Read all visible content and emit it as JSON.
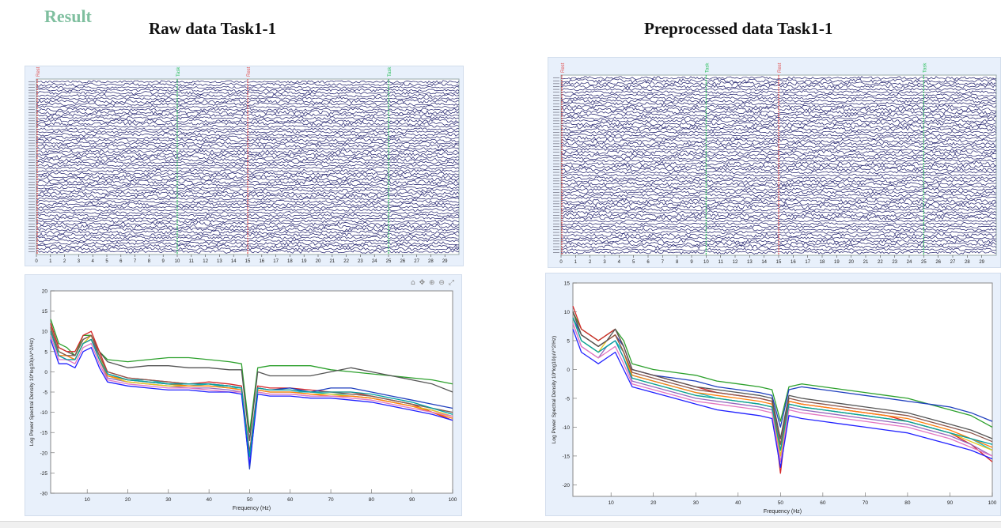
{
  "page": {
    "result_label": "Result"
  },
  "panels": {
    "raw_title": "Raw data Task1-1",
    "pre_title": "Preprocessed data Task1-1"
  },
  "chart_data": [
    {
      "type": "line",
      "kind": "eeg-scroll",
      "title": "Raw data Task1-1",
      "x_ticks": [
        "0",
        "1",
        "2",
        "3",
        "4",
        "5",
        "6",
        "7",
        "8",
        "9",
        "10",
        "11",
        "12",
        "13",
        "14",
        "15",
        "16",
        "17",
        "18",
        "19",
        "20",
        "21",
        "22",
        "23",
        "24",
        "25",
        "26",
        "27",
        "28",
        "29"
      ],
      "xlim": [
        0,
        30
      ],
      "event_markers": [
        {
          "label": "Rest",
          "x": 0,
          "color": "#e05050"
        },
        {
          "label": "Task",
          "x": 10,
          "color": "#30c060"
        },
        {
          "label": "Rest",
          "x": 15,
          "color": "#e05050"
        },
        {
          "label": "Task",
          "x": 25,
          "color": "#30c060"
        }
      ],
      "trace_color": "#1c1c6a",
      "channel_count": 62
    },
    {
      "type": "line",
      "kind": "eeg-scroll",
      "title": "Preprocessed data Task1-1",
      "x_ticks": [
        "0",
        "1",
        "2",
        "3",
        "4",
        "5",
        "6",
        "7",
        "8",
        "9",
        "10",
        "11",
        "12",
        "13",
        "14",
        "15",
        "16",
        "17",
        "18",
        "19",
        "20",
        "21",
        "22",
        "23",
        "24",
        "25",
        "26",
        "27",
        "28",
        "29"
      ],
      "xlim": [
        0,
        30
      ],
      "event_markers": [
        {
          "label": "Rest",
          "x": 0,
          "color": "#e05050"
        },
        {
          "label": "Task",
          "x": 10,
          "color": "#30c060"
        },
        {
          "label": "Rest",
          "x": 15,
          "color": "#e05050"
        },
        {
          "label": "Task",
          "x": 25,
          "color": "#30c060"
        }
      ],
      "trace_color": "#1c1c6a",
      "channel_count": 62
    },
    {
      "type": "line",
      "kind": "psd",
      "xlabel": "Frequency (Hz)",
      "ylabel": "Log Power Spectral Density 10*log10(uV^2/Hz)",
      "xlim": [
        1,
        100
      ],
      "ylim": [
        -30,
        20
      ],
      "x_ticks": [
        10,
        20,
        30,
        40,
        50,
        60,
        70,
        80,
        90,
        100
      ],
      "y_ticks": [
        20,
        15,
        10,
        5,
        0,
        -5,
        -10,
        -15,
        -20,
        -25,
        -30
      ],
      "x": [
        1,
        3,
        5,
        7,
        9,
        11,
        13,
        15,
        20,
        25,
        30,
        35,
        40,
        45,
        48,
        50,
        52,
        55,
        60,
        65,
        70,
        75,
        80,
        85,
        90,
        95,
        100
      ],
      "series": [
        {
          "color": "#2ca02c",
          "values": [
            13,
            7,
            6,
            4,
            9,
            9,
            5,
            3,
            2.5,
            3,
            3.5,
            3.5,
            3,
            2.5,
            2,
            -15,
            1,
            1.5,
            1.5,
            1.5,
            0.5,
            0,
            -0.5,
            -1,
            -1.5,
            -2,
            -3
          ]
        },
        {
          "color": "#555555",
          "values": [
            12,
            6,
            5,
            4,
            8,
            9,
            5,
            2.5,
            1,
            1.5,
            1.5,
            1,
            1,
            0.5,
            0.5,
            -17,
            0,
            -1,
            -1,
            -1,
            0,
            1,
            0,
            -1,
            -2,
            -3,
            -5
          ]
        },
        {
          "color": "#d62728",
          "values": [
            12,
            6,
            5,
            5,
            9,
            10,
            5,
            0,
            -1.5,
            -2,
            -2.5,
            -3,
            -2.5,
            -3,
            -3.5,
            -20,
            -3.5,
            -4,
            -4,
            -4.5,
            -5,
            -5,
            -6,
            -7,
            -8,
            -10,
            -12
          ]
        },
        {
          "color": "#1f3fbf",
          "values": [
            10,
            5,
            4,
            3,
            7,
            8,
            4,
            -1,
            -2,
            -2.5,
            -3,
            -3,
            -3,
            -3.5,
            -4,
            -24,
            -4,
            -4.5,
            -4,
            -5,
            -4,
            -4,
            -5,
            -6,
            -7,
            -8,
            -9
          ]
        },
        {
          "color": "#17becf",
          "values": [
            11,
            5,
            4,
            4,
            8,
            9,
            4,
            -0.5,
            -2,
            -2,
            -3,
            -3.5,
            -3,
            -4,
            -4,
            -21,
            -4.5,
            -5,
            -5,
            -5,
            -5.5,
            -5.5,
            -6,
            -7,
            -8,
            -9,
            -10
          ]
        },
        {
          "color": "#9467bd",
          "values": [
            10,
            4,
            3,
            3,
            7,
            8,
            3,
            -1.5,
            -2.5,
            -3,
            -3.5,
            -4,
            -4,
            -4.5,
            -5,
            -22,
            -5,
            -5.5,
            -5.5,
            -6,
            -6,
            -6,
            -6.5,
            -7.5,
            -8.5,
            -9.5,
            -11
          ]
        },
        {
          "color": "#e6c619",
          "values": [
            11,
            5,
            4,
            3,
            7,
            9,
            4,
            -1,
            -2.5,
            -3,
            -3.5,
            -3.5,
            -3.5,
            -4,
            -4.5,
            -22,
            -4.5,
            -5,
            -5,
            -5.5,
            -5.5,
            -6,
            -6.5,
            -7.5,
            -8.5,
            -9.5,
            -11
          ]
        },
        {
          "color": "#ff7f0e",
          "values": [
            10,
            4,
            4,
            3,
            7,
            8,
            3,
            -1,
            -2,
            -2.5,
            -3,
            -3.5,
            -3.5,
            -4,
            -4.5,
            -21,
            -4.5,
            -5,
            -5,
            -5.5,
            -6,
            -6,
            -6.5,
            -7.5,
            -8.5,
            -10,
            -11.5
          ]
        },
        {
          "color": "#e377c2",
          "values": [
            9,
            3,
            3,
            2,
            6,
            7,
            2,
            -2,
            -3,
            -3.5,
            -4,
            -4,
            -4.5,
            -5,
            -5,
            -22,
            -5,
            -5.5,
            -5.5,
            -6,
            -6,
            -6.5,
            -7,
            -8,
            -9,
            -10,
            -11
          ]
        },
        {
          "color": "#2020ff",
          "values": [
            8,
            2,
            2,
            1,
            5,
            6,
            1,
            -2.5,
            -3.5,
            -4,
            -4.5,
            -4.5,
            -5,
            -5,
            -5.5,
            -23,
            -5.5,
            -6,
            -6,
            -6.5,
            -6.5,
            -7,
            -7.5,
            -8.5,
            -9.5,
            -10.5,
            -12
          ]
        },
        {
          "color": "#8c564b",
          "values": [
            11,
            5,
            4,
            4,
            8,
            9,
            4,
            0,
            -1.5,
            -2,
            -2.5,
            -3,
            -3,
            -3.5,
            -4,
            -20,
            -4,
            -4.5,
            -4.5,
            -5,
            -5,
            -5.5,
            -6,
            -7,
            -8,
            -9,
            -10
          ]
        },
        {
          "color": "#00a0a0",
          "values": [
            10,
            4,
            3,
            3,
            7,
            8,
            3,
            -0.5,
            -2,
            -2.5,
            -3,
            -3,
            -3,
            -3.5,
            -4,
            -21,
            -4,
            -4.5,
            -4.5,
            -5,
            -5,
            -5,
            -5.5,
            -6.5,
            -7.5,
            -9,
            -10.5
          ]
        }
      ]
    },
    {
      "type": "line",
      "kind": "psd",
      "xlabel": "Frequency (Hz)",
      "ylabel": "Log Power Spectral Density 10*log10(uV^2/Hz)",
      "xlim": [
        1,
        100
      ],
      "ylim": [
        -22,
        15
      ],
      "x_ticks": [
        10,
        20,
        30,
        40,
        50,
        60,
        70,
        80,
        90,
        100
      ],
      "y_ticks": [
        15,
        10,
        5,
        0,
        -5,
        -10,
        -15,
        -20
      ],
      "x": [
        1,
        3,
        5,
        7,
        9,
        11,
        13,
        15,
        20,
        25,
        30,
        35,
        40,
        45,
        48,
        50,
        52,
        55,
        60,
        65,
        70,
        75,
        80,
        85,
        90,
        95,
        100
      ],
      "series": [
        {
          "color": "#2ca02c",
          "values": [
            10,
            7,
            6,
            5,
            6,
            7,
            5,
            1,
            0,
            -0.5,
            -1,
            -2,
            -2.5,
            -3,
            -3.5,
            -9,
            -3,
            -2.5,
            -3,
            -3.5,
            -4,
            -4.5,
            -5,
            -6,
            -7,
            -8,
            -10
          ]
        },
        {
          "color": "#1f3fbf",
          "values": [
            9,
            6,
            5,
            4,
            5,
            6,
            4,
            0,
            -1,
            -1.5,
            -2,
            -3,
            -3.5,
            -4,
            -4.5,
            -10,
            -3.5,
            -3,
            -3.5,
            -4,
            -4.5,
            -5,
            -5.5,
            -6,
            -6.5,
            -7.5,
            -9
          ]
        },
        {
          "color": "#d62728",
          "values": [
            11,
            7,
            6,
            5,
            6,
            7,
            4,
            0,
            -1,
            -2,
            -3,
            -4,
            -4.5,
            -5,
            -5.5,
            -18,
            -5.5,
            -6,
            -6.5,
            -7,
            -7.5,
            -8,
            -9,
            -10,
            -11,
            -13,
            -16
          ]
        },
        {
          "color": "#17becf",
          "values": [
            9,
            5,
            4,
            3,
            4,
            5,
            3,
            -1,
            -2,
            -3,
            -4,
            -5,
            -5.5,
            -6,
            -6.5,
            -15,
            -6,
            -6.5,
            -7,
            -7.5,
            -8,
            -8.5,
            -9,
            -10,
            -11,
            -12,
            -14
          ]
        },
        {
          "color": "#9467bd",
          "values": [
            8,
            4,
            3,
            2,
            4,
            5,
            2,
            -2,
            -3,
            -4,
            -5,
            -5.5,
            -6,
            -6.5,
            -7,
            -16,
            -6.5,
            -7,
            -7.5,
            -8,
            -8.5,
            -9,
            -9.5,
            -10.5,
            -11.5,
            -13,
            -15
          ]
        },
        {
          "color": "#e6c619",
          "values": [
            9,
            5,
            4,
            3,
            5,
            6,
            3,
            -1.5,
            -2.5,
            -3.5,
            -4.5,
            -5,
            -5.5,
            -6,
            -6.5,
            -15,
            -6,
            -6.5,
            -7,
            -7.5,
            -8,
            -8.5,
            -9,
            -10,
            -11,
            -12.5,
            -14
          ]
        },
        {
          "color": "#ff7f0e",
          "values": [
            10,
            6,
            5,
            4,
            5,
            6,
            3,
            -1,
            -2,
            -3,
            -4,
            -4.5,
            -5,
            -5.5,
            -6,
            -14,
            -5.5,
            -6,
            -6.5,
            -7,
            -7.5,
            -8,
            -8.5,
            -9.5,
            -10.5,
            -12,
            -13.5
          ]
        },
        {
          "color": "#e377c2",
          "values": [
            8,
            4,
            3,
            2,
            3,
            4,
            1,
            -2.5,
            -3.5,
            -4.5,
            -5.5,
            -6,
            -6.5,
            -7,
            -7.5,
            -16,
            -7,
            -7.5,
            -8,
            -8.5,
            -9,
            -9.5,
            -10,
            -11,
            -12,
            -13.5,
            -15
          ]
        },
        {
          "color": "#2020ff",
          "values": [
            7,
            3,
            2,
            1,
            2,
            3,
            0,
            -3,
            -4,
            -5,
            -6,
            -7,
            -7.5,
            -8,
            -8.5,
            -17,
            -8,
            -8.5,
            -9,
            -9.5,
            -10,
            -10.5,
            -11,
            -12,
            -13,
            -14,
            -15.5
          ]
        },
        {
          "color": "#8c564b",
          "values": [
            10,
            6,
            5,
            4,
            5,
            6,
            3,
            -0.5,
            -1.5,
            -2.5,
            -3.5,
            -4,
            -4.5,
            -5,
            -5.5,
            -13,
            -5,
            -5.5,
            -6,
            -6.5,
            -7,
            -7.5,
            -8,
            -9,
            -10,
            -11,
            -12.5
          ]
        },
        {
          "color": "#00a0a0",
          "values": [
            9,
            5,
            4,
            3,
            4,
            5,
            2,
            -1.5,
            -2.5,
            -3.5,
            -4.5,
            -5,
            -5.5,
            -6,
            -6.5,
            -14,
            -6,
            -6.5,
            -7,
            -7.5,
            -8,
            -8.5,
            -9,
            -10,
            -11,
            -12,
            -13
          ]
        },
        {
          "color": "#555555",
          "values": [
            10,
            6,
            5,
            4,
            5,
            7,
            4,
            0,
            -1,
            -2,
            -3,
            -3.5,
            -4,
            -4.5,
            -5,
            -12,
            -4.5,
            -5,
            -5.5,
            -6,
            -6.5,
            -7,
            -7.5,
            -8.5,
            -9.5,
            -10.5,
            -12
          ]
        }
      ]
    }
  ]
}
